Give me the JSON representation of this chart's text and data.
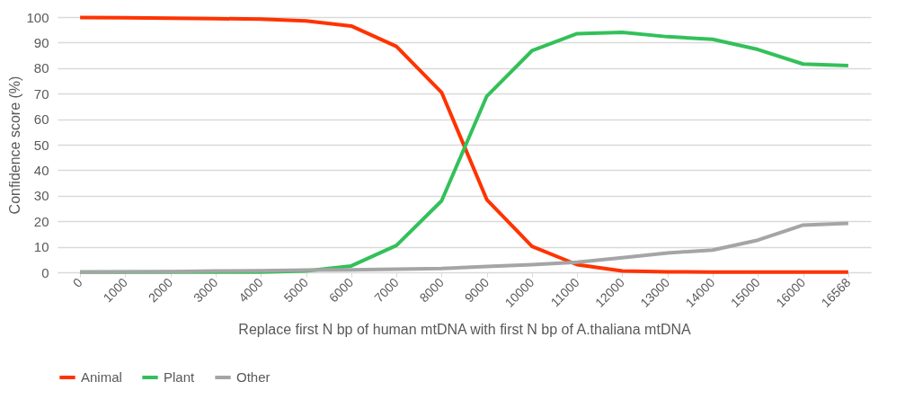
{
  "chart_data": {
    "type": "line",
    "xlabel": "Replace first N bp of human mtDNA with first N bp of A.thaliana mtDNA",
    "ylabel": "Confidence score (%)",
    "categories": [
      "0",
      "1000",
      "2000",
      "3000",
      "4000",
      "5000",
      "6000",
      "7000",
      "8000",
      "9000",
      "10000",
      "11000",
      "12000",
      "13000",
      "14000",
      "15000",
      "16000",
      "16568"
    ],
    "series": [
      {
        "name": "Animal",
        "color": "#ff3300",
        "values": [
          99.8,
          99.7,
          99.6,
          99.4,
          99.2,
          98.5,
          96.5,
          88.5,
          70.5,
          28.5,
          10.2,
          3,
          0.5,
          0.2,
          0.1,
          0.1,
          0.1,
          0.1
        ]
      },
      {
        "name": "Plant",
        "color": "#33c05a",
        "values": [
          0.1,
          0.1,
          0.1,
          0.1,
          0.1,
          0.5,
          2.5,
          10.5,
          28,
          69,
          86.8,
          93.5,
          94,
          92.3,
          91.3,
          87.3,
          81.6,
          81
        ]
      },
      {
        "name": "Other",
        "color": "#a5a5a5",
        "values": [
          0.1,
          0.2,
          0.3,
          0.5,
          0.6,
          0.9,
          1,
          1.2,
          1.5,
          2.3,
          3,
          4,
          5.7,
          7.6,
          8.7,
          12.6,
          18.5,
          19.2
        ]
      }
    ],
    "ylim": [
      0,
      100
    ],
    "yticks": [
      0,
      10,
      20,
      30,
      40,
      50,
      60,
      70,
      80,
      90,
      100
    ],
    "grid": "y",
    "legend": "bottom",
    "marker": "none",
    "line_style": "solid"
  }
}
